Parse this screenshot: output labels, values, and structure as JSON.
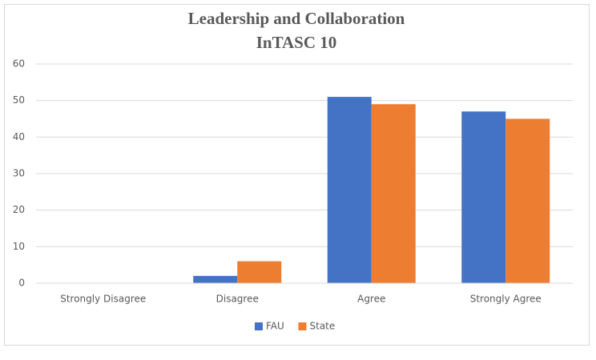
{
  "chart_data": {
    "type": "bar",
    "title": "Leadership and Collaboration",
    "subtitle": "InTASC 10",
    "categories": [
      "Strongly Disagree",
      "Disagree",
      "Agree",
      "Strongly Agree"
    ],
    "series": [
      {
        "name": "FAU",
        "color": "#4472c4",
        "values": [
          0,
          2,
          51,
          47
        ]
      },
      {
        "name": "State",
        "color": "#ed7d31",
        "values": [
          0,
          6,
          49,
          45
        ]
      }
    ],
    "ylim": [
      0,
      60
    ],
    "yticks": [
      0,
      10,
      20,
      30,
      40,
      50,
      60
    ],
    "grid": true,
    "legend": "bottom"
  }
}
